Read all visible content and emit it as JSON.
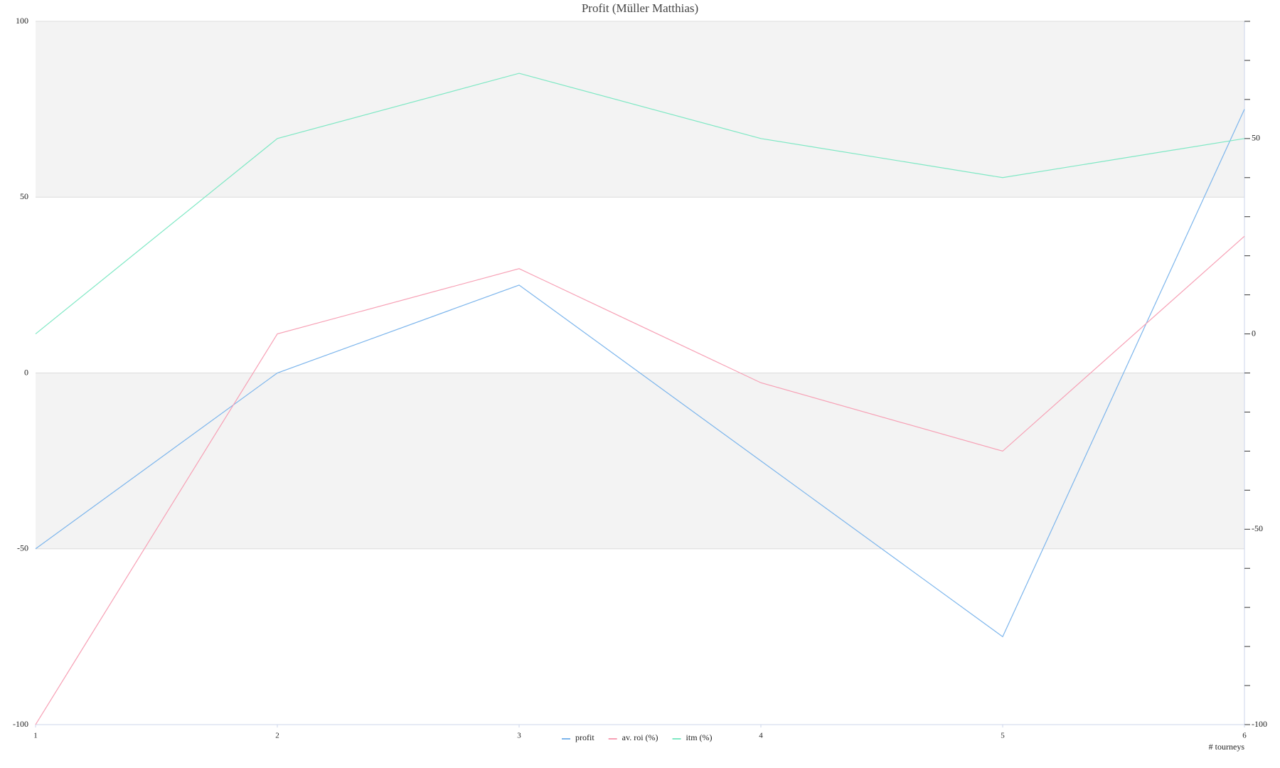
{
  "chart_data": {
    "type": "line",
    "title": "Profit  (Müller Matthias)",
    "x_label": "# tourneys",
    "x": [
      1,
      2,
      3,
      4,
      5,
      6
    ],
    "xlim": [
      1,
      6
    ],
    "xticks": [
      1,
      2,
      3,
      4,
      5,
      6
    ],
    "ylim": [
      -100,
      100
    ],
    "yticks": [
      -100,
      -50,
      0,
      50,
      100
    ],
    "y2lim": [
      -100,
      80
    ],
    "y2ticks": [
      -100,
      -50,
      0,
      50
    ],
    "y2_minor_ticks": [
      -90,
      -80,
      -70,
      -60,
      -40,
      -30,
      -20,
      -10,
      10,
      20,
      30,
      40,
      60,
      70,
      80
    ],
    "grid": true,
    "legend": "bottom",
    "series": [
      {
        "name": "profit",
        "color": "#7cb5ec",
        "values": [
          -50,
          0,
          25,
          -25,
          -75,
          75
        ]
      },
      {
        "name": "av. roi (%)",
        "color": "#f7a0b5",
        "axis": "y2",
        "values": [
          -100,
          0,
          16.7,
          -12.5,
          -30,
          25
        ]
      },
      {
        "name": "itm (%)",
        "color": "#7ee8c4",
        "axis": "y2",
        "values": [
          0,
          50,
          66.7,
          50,
          40,
          50
        ]
      }
    ]
  }
}
